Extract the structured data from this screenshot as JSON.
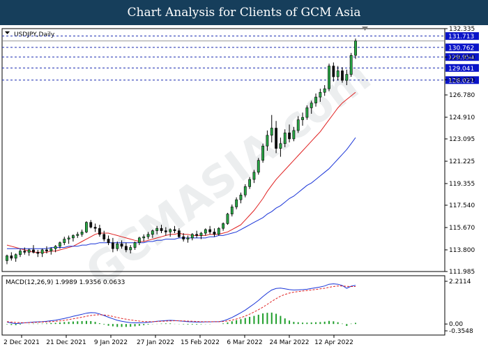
{
  "header": {
    "title": "Chart Analysis for Clients of GCM Asia"
  },
  "watermark": "GCMASIA.com",
  "chart_data": [
    {
      "type": "candlestick",
      "label": "USDJPY,Daily",
      "ylim": [
        111.985,
        132.335
      ],
      "y_ticks": [
        "132.335",
        "129.950",
        "128.050",
        "126.780",
        "124.910",
        "123.095",
        "121.225",
        "119.355",
        "117.540",
        "115.670",
        "113.800",
        "111.985"
      ],
      "x_ticks": [
        "2 Dec 2021",
        "21 Dec 2021",
        "9 Jan 2022",
        "27 Jan 2022",
        "15 Feb 2022",
        "6 Mar 2022",
        "24 Mar 2022",
        "12 Apr 2022"
      ],
      "levels": [
        {
          "value": 131.713,
          "label": "131.713"
        },
        {
          "value": 130.762,
          "label": "130.762"
        },
        {
          "value": 129.954,
          "label": "129.954"
        },
        {
          "value": 129.041,
          "label": "129.041"
        },
        {
          "value": 128.021,
          "label": "128.021"
        }
      ],
      "ohlc": [
        [
          112.9,
          113.4,
          112.6,
          113.3
        ],
        [
          113.3,
          113.6,
          112.9,
          113.1
        ],
        [
          113.1,
          113.5,
          112.8,
          113.4
        ],
        [
          113.4,
          113.9,
          113.2,
          113.7
        ],
        [
          113.7,
          114.0,
          113.4,
          113.6
        ],
        [
          113.6,
          113.9,
          113.3,
          113.8
        ],
        [
          113.8,
          114.2,
          113.5,
          113.6
        ],
        [
          113.6,
          113.8,
          113.2,
          113.5
        ],
        [
          113.5,
          113.9,
          113.2,
          113.8
        ],
        [
          113.8,
          114.1,
          113.5,
          113.7
        ],
        [
          113.7,
          114.0,
          113.4,
          113.9
        ],
        [
          113.9,
          114.2,
          113.6,
          114.1
        ],
        [
          114.1,
          114.5,
          113.9,
          114.4
        ],
        [
          114.4,
          114.9,
          114.2,
          114.7
        ],
        [
          114.7,
          115.0,
          114.3,
          114.8
        ],
        [
          114.8,
          115.1,
          114.5,
          115.0
        ],
        [
          115.0,
          115.3,
          114.8,
          115.1
        ],
        [
          115.1,
          115.5,
          114.9,
          115.3
        ],
        [
          115.3,
          116.2,
          115.2,
          116.1
        ],
        [
          116.1,
          116.3,
          115.6,
          115.7
        ],
        [
          115.7,
          116.0,
          115.3,
          115.6
        ],
        [
          115.6,
          115.9,
          114.9,
          115.1
        ],
        [
          115.1,
          115.4,
          114.5,
          114.7
        ],
        [
          114.7,
          115.0,
          114.2,
          114.4
        ],
        [
          114.4,
          114.8,
          113.6,
          113.9
        ],
        [
          113.9,
          114.5,
          113.7,
          114.3
        ],
        [
          114.3,
          114.6,
          113.9,
          114.1
        ],
        [
          114.1,
          114.4,
          113.6,
          113.8
        ],
        [
          113.8,
          114.2,
          113.5,
          114.0
        ],
        [
          114.0,
          114.5,
          113.8,
          114.4
        ],
        [
          114.4,
          114.9,
          114.2,
          114.8
        ],
        [
          114.8,
          115.1,
          114.5,
          114.9
        ],
        [
          114.9,
          115.3,
          114.7,
          115.1
        ],
        [
          115.1,
          115.5,
          114.8,
          115.4
        ],
        [
          115.4,
          115.8,
          115.1,
          115.6
        ],
        [
          115.6,
          115.9,
          115.2,
          115.4
        ],
        [
          115.4,
          115.7,
          115.0,
          115.3
        ],
        [
          115.3,
          115.6,
          114.9,
          115.5
        ],
        [
          115.5,
          115.8,
          115.2,
          115.4
        ],
        [
          115.4,
          115.6,
          114.8,
          114.9
        ],
        [
          114.9,
          115.2,
          114.5,
          114.7
        ],
        [
          114.7,
          115.0,
          114.4,
          114.8
        ],
        [
          114.8,
          115.2,
          114.6,
          115.1
        ],
        [
          115.1,
          115.4,
          114.8,
          115.0
        ],
        [
          115.0,
          115.3,
          114.7,
          115.2
        ],
        [
          115.2,
          115.6,
          115.0,
          115.5
        ],
        [
          115.5,
          115.8,
          115.1,
          115.3
        ],
        [
          115.3,
          115.6,
          114.9,
          115.1
        ],
        [
          115.1,
          115.7,
          115.0,
          115.6
        ],
        [
          115.6,
          116.1,
          115.4,
          116.0
        ],
        [
          116.0,
          116.9,
          115.9,
          116.8
        ],
        [
          116.8,
          117.6,
          116.6,
          117.4
        ],
        [
          117.4,
          118.2,
          117.2,
          118.0
        ],
        [
          118.0,
          118.6,
          117.7,
          118.4
        ],
        [
          118.4,
          119.3,
          118.2,
          119.1
        ],
        [
          119.1,
          119.9,
          118.9,
          119.7
        ],
        [
          119.7,
          120.5,
          119.4,
          120.3
        ],
        [
          120.3,
          121.5,
          120.1,
          121.3
        ],
        [
          121.3,
          122.7,
          121.1,
          122.5
        ],
        [
          122.5,
          123.8,
          122.1,
          123.4
        ],
        [
          123.4,
          125.1,
          122.8,
          124.0
        ],
        [
          124.0,
          124.6,
          121.9,
          122.3
        ],
        [
          122.3,
          123.2,
          121.6,
          122.7
        ],
        [
          122.7,
          123.9,
          122.4,
          123.6
        ],
        [
          123.6,
          124.3,
          122.8,
          123.1
        ],
        [
          123.1,
          124.1,
          122.9,
          123.8
        ],
        [
          123.8,
          125.0,
          123.6,
          124.7
        ],
        [
          124.7,
          125.3,
          124.2,
          124.9
        ],
        [
          124.9,
          125.9,
          124.7,
          125.7
        ],
        [
          125.7,
          126.3,
          125.2,
          126.1
        ],
        [
          126.1,
          126.9,
          125.8,
          126.6
        ],
        [
          126.6,
          127.3,
          126.2,
          127.0
        ],
        [
          127.0,
          127.6,
          126.7,
          127.3
        ],
        [
          127.3,
          129.4,
          127.1,
          129.2
        ],
        [
          129.2,
          129.5,
          127.9,
          128.3
        ],
        [
          128.3,
          129.2,
          128.0,
          128.8
        ],
        [
          128.8,
          129.1,
          127.8,
          128.0
        ],
        [
          128.0,
          128.9,
          127.6,
          128.5
        ],
        [
          128.5,
          130.3,
          128.3,
          130.1
        ],
        [
          130.1,
          131.5,
          129.8,
          131.3
        ]
      ],
      "series": [
        {
          "name": "",
          "color": "#e02020",
          "values": [
            114.2,
            114.1,
            114.0,
            113.9,
            113.8,
            113.7,
            113.6,
            113.6,
            113.6,
            113.6,
            113.7,
            113.7,
            113.8,
            113.9,
            114.0,
            114.1,
            114.3,
            114.5,
            114.7,
            114.9,
            115.1,
            115.2,
            115.2,
            115.2,
            115.1,
            115.0,
            114.9,
            114.8,
            114.7,
            114.6,
            114.5,
            114.5,
            114.6,
            114.7,
            114.8,
            114.9,
            115.0,
            115.1,
            115.1,
            115.2,
            115.1,
            115.1,
            115.0,
            115.0,
            115.0,
            115.0,
            115.1,
            115.1,
            115.1,
            115.2,
            115.3,
            115.5,
            115.7,
            115.9,
            116.3,
            116.7,
            117.1,
            117.6,
            118.1,
            118.7,
            119.2,
            119.7,
            120.1,
            120.5,
            120.9,
            121.3,
            121.7,
            122.1,
            122.5,
            122.9,
            123.3,
            123.7,
            124.2,
            124.7,
            125.2,
            125.7,
            126.1,
            126.4,
            126.7,
            127.0
          ]
        },
        {
          "name": "",
          "color": "#1a35d8",
          "values": [
            113.9,
            113.9,
            113.9,
            113.9,
            113.9,
            113.9,
            113.9,
            113.9,
            113.9,
            113.9,
            114.0,
            114.0,
            114.0,
            114.0,
            114.1,
            114.1,
            114.1,
            114.2,
            114.2,
            114.3,
            114.3,
            114.4,
            114.4,
            114.4,
            114.4,
            114.4,
            114.4,
            114.4,
            114.4,
            114.4,
            114.4,
            114.4,
            114.5,
            114.5,
            114.6,
            114.6,
            114.7,
            114.7,
            114.7,
            114.8,
            114.8,
            114.8,
            114.8,
            114.8,
            114.8,
            114.8,
            114.9,
            114.9,
            115.0,
            115.0,
            115.1,
            115.2,
            115.3,
            115.5,
            115.7,
            115.9,
            116.1,
            116.3,
            116.5,
            116.8,
            117.0,
            117.3,
            117.5,
            117.8,
            118.1,
            118.3,
            118.6,
            118.9,
            119.2,
            119.4,
            119.7,
            120.0,
            120.3,
            120.6,
            121.0,
            121.4,
            121.8,
            122.2,
            122.7,
            123.2
          ]
        }
      ]
    },
    {
      "type": "macd",
      "label": "MACD(12,26,9) 1.9989 1.9356 0.0633",
      "ylim": [
        -0.3548,
        2.2114
      ],
      "y_ticks": [
        "2.2114",
        "0.00",
        "-0.3548"
      ],
      "series": [
        {
          "name": "",
          "color": "#1a35d8",
          "values": [
            0.1,
            0.05,
            0.02,
            0.04,
            0.06,
            0.08,
            0.1,
            0.11,
            0.12,
            0.14,
            0.17,
            0.2,
            0.24,
            0.29,
            0.34,
            0.4,
            0.45,
            0.5,
            0.56,
            0.59,
            0.58,
            0.52,
            0.44,
            0.35,
            0.27,
            0.19,
            0.14,
            0.1,
            0.07,
            0.06,
            0.06,
            0.07,
            0.09,
            0.11,
            0.14,
            0.16,
            0.18,
            0.19,
            0.18,
            0.16,
            0.14,
            0.12,
            0.11,
            0.1,
            0.1,
            0.11,
            0.11,
            0.12,
            0.12,
            0.16,
            0.24,
            0.34,
            0.46,
            0.58,
            0.72,
            0.88,
            1.04,
            1.22,
            1.42,
            1.6,
            1.76,
            1.84,
            1.86,
            1.82,
            1.78,
            1.76,
            1.77,
            1.78,
            1.8,
            1.84,
            1.88,
            1.92,
            1.97,
            2.06,
            2.08,
            2.06,
            1.99,
            1.85,
            1.96,
            2.0
          ]
        },
        {
          "name": "",
          "color": "#e02020",
          "values": [
            0.12,
            0.1,
            0.08,
            0.07,
            0.06,
            0.07,
            0.08,
            0.09,
            0.1,
            0.11,
            0.12,
            0.14,
            0.16,
            0.19,
            0.23,
            0.27,
            0.31,
            0.35,
            0.4,
            0.44,
            0.47,
            0.48,
            0.47,
            0.44,
            0.39,
            0.34,
            0.29,
            0.25,
            0.21,
            0.18,
            0.15,
            0.13,
            0.12,
            0.12,
            0.13,
            0.14,
            0.15,
            0.16,
            0.17,
            0.17,
            0.16,
            0.15,
            0.14,
            0.13,
            0.12,
            0.12,
            0.12,
            0.12,
            0.12,
            0.13,
            0.16,
            0.2,
            0.26,
            0.33,
            0.41,
            0.51,
            0.62,
            0.74,
            0.87,
            1.02,
            1.17,
            1.31,
            1.44,
            1.53,
            1.6,
            1.65,
            1.68,
            1.71,
            1.73,
            1.76,
            1.79,
            1.82,
            1.85,
            1.9,
            1.94,
            1.97,
            1.97,
            1.95,
            1.94,
            1.94
          ]
        },
        {
          "name": "",
          "color": "#1e9e2a",
          "values": [
            -0.02,
            -0.05,
            -0.06,
            -0.03,
            0.0,
            0.01,
            0.02,
            0.02,
            0.02,
            0.03,
            0.05,
            0.06,
            0.08,
            0.1,
            0.11,
            0.13,
            0.14,
            0.15,
            0.16,
            0.15,
            0.11,
            0.04,
            -0.03,
            -0.09,
            -0.12,
            -0.15,
            -0.15,
            -0.15,
            -0.14,
            -0.12,
            -0.09,
            -0.06,
            -0.03,
            -0.01,
            0.01,
            0.02,
            0.03,
            0.03,
            0.01,
            -0.01,
            -0.02,
            -0.03,
            -0.03,
            -0.03,
            -0.02,
            -0.01,
            -0.01,
            0.0,
            0.0,
            0.03,
            0.08,
            0.14,
            0.2,
            0.25,
            0.31,
            0.37,
            0.42,
            0.48,
            0.55,
            0.58,
            0.59,
            0.53,
            0.42,
            0.29,
            0.18,
            0.11,
            0.09,
            0.07,
            0.07,
            0.08,
            0.09,
            0.1,
            0.12,
            0.16,
            0.14,
            0.09,
            0.02,
            -0.1,
            0.02,
            0.06
          ]
        }
      ]
    }
  ]
}
